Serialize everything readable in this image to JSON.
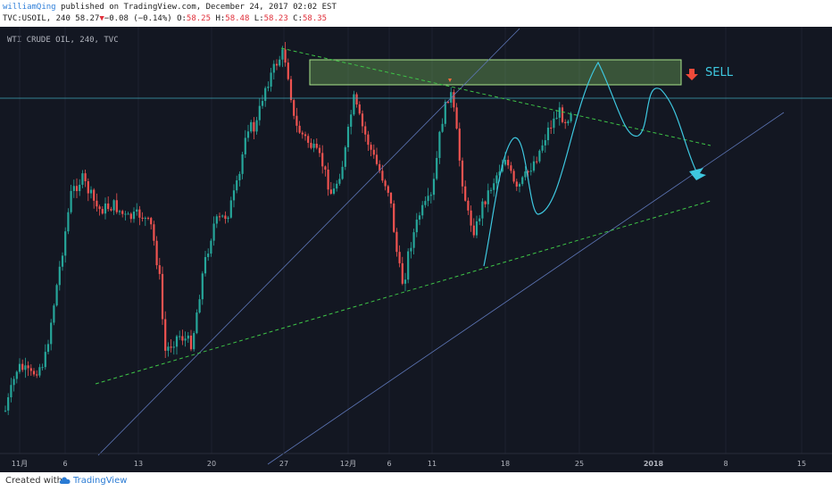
{
  "header": {
    "author": "williamQing",
    "published_text": " published on TradingView.com, December 24, 2017 02:02 EST",
    "symbol_prefix": "TVC:USOIL, 240 58.27",
    "change_arrow": "▼",
    "change_text": "−0.08 (−0.14%)",
    "o_label": "O:",
    "o_value": "58.25",
    "h_label": "H:",
    "h_value": "58.48",
    "l_label": "L:",
    "l_value": "58.23",
    "c_label": "C:",
    "c_value": "58.35"
  },
  "chart_data": {
    "type": "candlestick",
    "title": "WTI CRUDE OIL, 240, TVC",
    "x_tick_labels": [
      "11月",
      "6",
      "13",
      "20",
      "27",
      "12月",
      "6",
      "11",
      "18",
      "25",
      "2018",
      "8",
      "15"
    ],
    "annotations": [
      "SELL"
    ],
    "colors": {
      "background": "#131722",
      "up": "#26a69a",
      "down": "#ef5350",
      "trend": "#3ec447",
      "projection": "#3ec8e0",
      "zone": "#8bd86a"
    }
  },
  "footer": {
    "created_with": "Created with",
    "brand": "TradingView"
  }
}
